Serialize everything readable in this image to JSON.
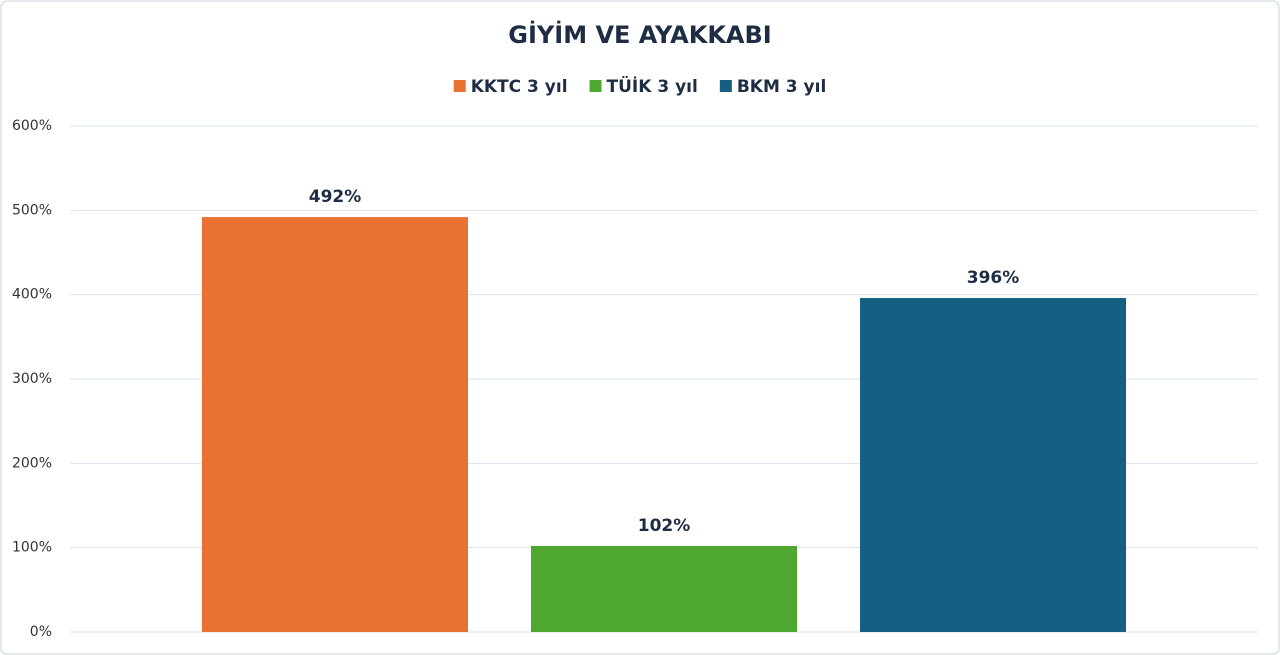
{
  "chart_data": {
    "type": "bar",
    "title": "GİYİM VE AYAKKABI",
    "categories": [
      null
    ],
    "series": [
      {
        "name": "KKTC 3 yıl",
        "color": "#e97132",
        "values": [
          492
        ],
        "value_labels": [
          "492%"
        ]
      },
      {
        "name": "TÜİK 3 yıl",
        "color": "#4ea72e",
        "values": [
          102
        ],
        "value_labels": [
          "102%"
        ]
      },
      {
        "name": "BKM 3 yıl",
        "color": "#156082",
        "values": [
          396
        ],
        "value_labels": [
          "396%"
        ]
      }
    ],
    "ylim": [
      0,
      600
    ],
    "yticks": [
      {
        "value": 0,
        "label": "0%"
      },
      {
        "value": 100,
        "label": "100%"
      },
      {
        "value": 200,
        "label": "200%"
      },
      {
        "value": 300,
        "label": "300%"
      },
      {
        "value": 400,
        "label": "400%"
      },
      {
        "value": 500,
        "label": "500%"
      },
      {
        "value": 600,
        "label": "600%"
      }
    ],
    "grid": true,
    "legend": "top"
  }
}
